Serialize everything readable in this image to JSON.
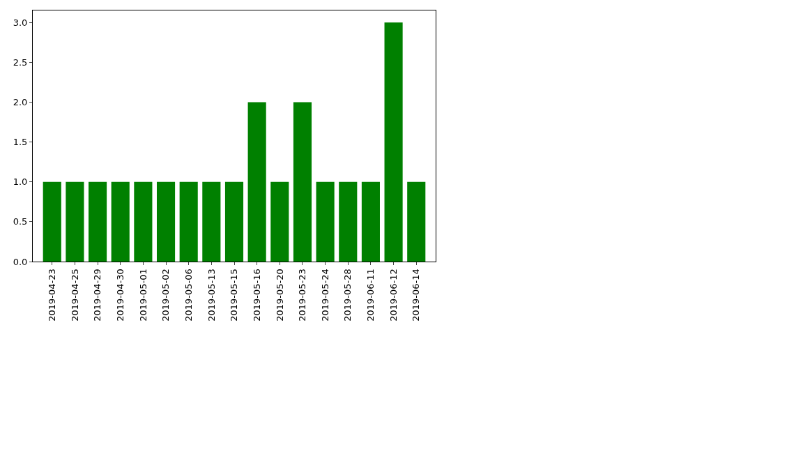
{
  "chart_data": {
    "type": "bar",
    "categories": [
      "2019-04-23",
      "2019-04-25",
      "2019-04-29",
      "2019-04-30",
      "2019-05-01",
      "2019-05-02",
      "2019-05-06",
      "2019-05-13",
      "2019-05-15",
      "2019-05-16",
      "2019-05-20",
      "2019-05-23",
      "2019-05-24",
      "2019-05-28",
      "2019-06-11",
      "2019-06-12",
      "2019-06-14"
    ],
    "values": [
      1,
      1,
      1,
      1,
      1,
      1,
      1,
      1,
      1,
      2,
      1,
      2,
      1,
      1,
      1,
      3,
      1
    ],
    "color": "#008000",
    "ylim": [
      0,
      3.15
    ],
    "yticks": [
      {
        "value": 0,
        "label": "0.0"
      },
      {
        "value": 0.5,
        "label": "0.5"
      },
      {
        "value": 1,
        "label": "1.0"
      },
      {
        "value": 1.5,
        "label": "1.5"
      },
      {
        "value": 2,
        "label": "2.0"
      },
      {
        "value": 2.5,
        "label": "2.5"
      },
      {
        "value": 3,
        "label": "3.0"
      }
    ]
  }
}
